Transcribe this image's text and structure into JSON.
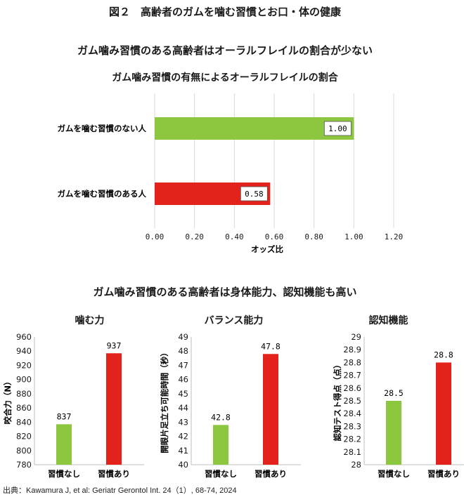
{
  "figure_title": "図２　高齢者のガムを噛む習慣とお口・体の健康",
  "section1_title": "ガム噛み習慣のある高齢者はオーラルフレイルの割合が少ない",
  "section2_title": "ガム噛み習慣のある高齢者は身体能力、認知機能も高い",
  "source": "出典：Kawamura J, et al: Geriatr Gerontol Int. 24（1）, 68-74, 2024",
  "colors": {
    "green": "#8dc63f",
    "red": "#e3231b",
    "grid": "#d9d9d9",
    "axis": "#bfbfbf"
  },
  "chart_data": [
    {
      "type": "bar",
      "orientation": "horizontal",
      "title": "ガム噛み習慣の有無によるオーラルフレイルの割合",
      "xlabel": "オッズ比",
      "xlim": [
        0,
        1.2
      ],
      "xticks": [
        "0.00",
        "0.20",
        "0.40",
        "0.60",
        "0.80",
        "1.00",
        "1.20"
      ],
      "categories": [
        "ガムを噛む習慣のない人",
        "ガムを噛む習慣のある人"
      ],
      "values": [
        1.0,
        0.58
      ],
      "value_labels": [
        "1.00",
        "0.58"
      ],
      "bar_colors": [
        "#8dc63f",
        "#e3231b"
      ]
    },
    {
      "type": "bar",
      "title": "噛む力",
      "ylabel": "咬合力（N）",
      "ylim": [
        780,
        960
      ],
      "yticks": [
        "780",
        "800",
        "820",
        "840",
        "860",
        "880",
        "900",
        "920",
        "940",
        "960"
      ],
      "categories": [
        "習慣なし",
        "習慣あり"
      ],
      "values": [
        837,
        937
      ],
      "value_labels": [
        "837",
        "937"
      ],
      "bar_colors": [
        "#8dc63f",
        "#e3231b"
      ]
    },
    {
      "type": "bar",
      "title": "バランス能力",
      "ylabel": "開眼片足立ち可能時間（秒）",
      "ylim": [
        40,
        49
      ],
      "yticks": [
        "40",
        "41",
        "42",
        "43",
        "44",
        "45",
        "46",
        "47",
        "48",
        "49"
      ],
      "categories": [
        "習慣なし",
        "習慣あり"
      ],
      "values": [
        42.8,
        47.8
      ],
      "value_labels": [
        "42.8",
        "47.8"
      ],
      "bar_colors": [
        "#8dc63f",
        "#e3231b"
      ]
    },
    {
      "type": "bar",
      "title": "認知機能",
      "ylabel": "認知テスト得点（点）",
      "ylim": [
        28,
        29
      ],
      "yticks": [
        "28",
        "28.1",
        "28.2",
        "28.3",
        "28.4",
        "28.5",
        "28.6",
        "28.7",
        "28.8",
        "28.9",
        "29"
      ],
      "categories": [
        "習慣なし",
        "習慣あり"
      ],
      "values": [
        28.5,
        28.8
      ],
      "value_labels": [
        "28.5",
        "28.8"
      ],
      "bar_colors": [
        "#8dc63f",
        "#e3231b"
      ]
    }
  ]
}
